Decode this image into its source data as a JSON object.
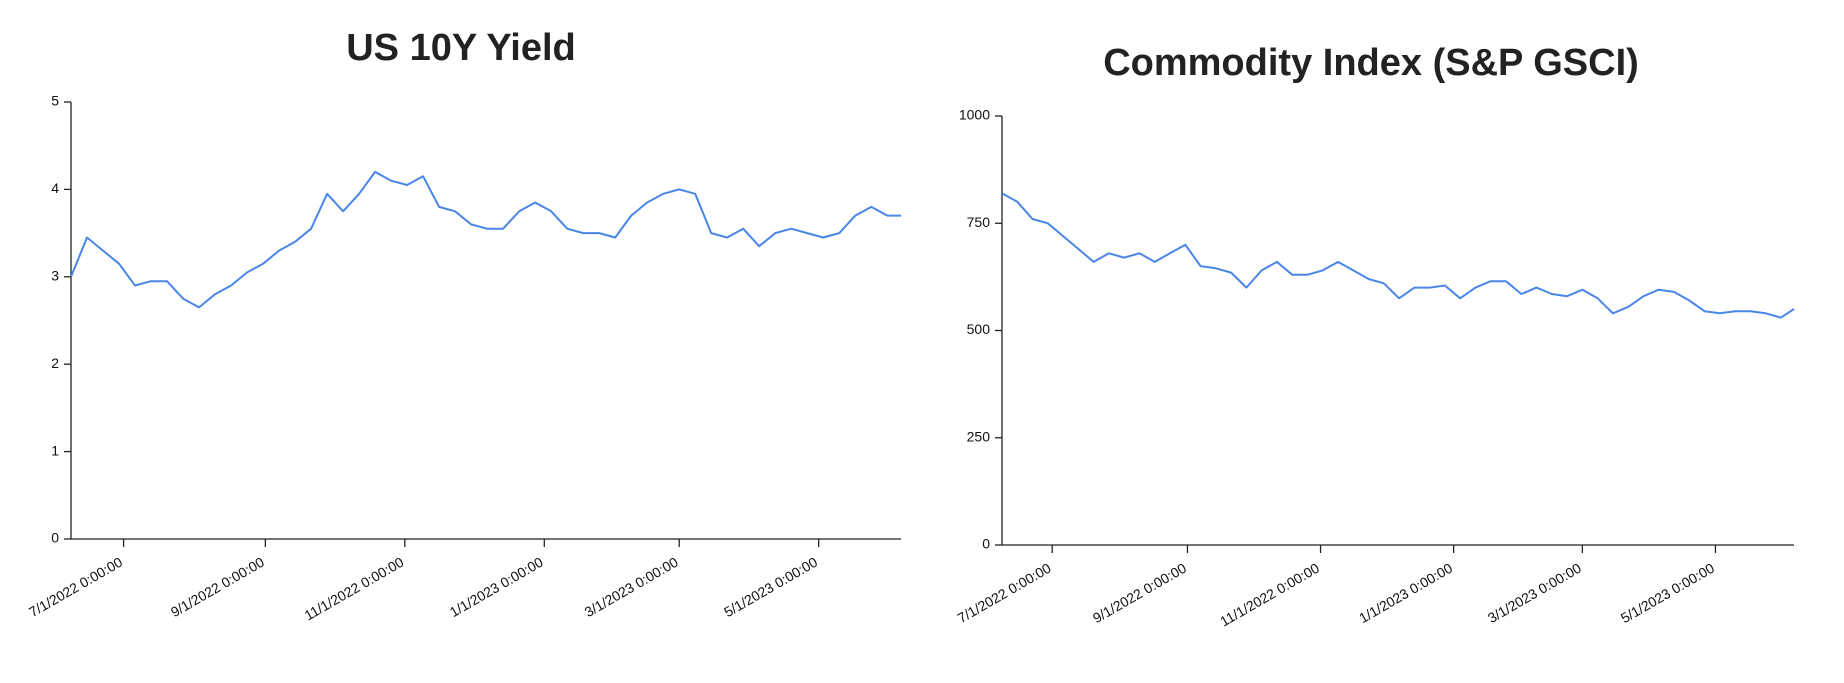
{
  "chart_data": [
    {
      "type": "line",
      "title": "US 10Y Yield",
      "x": [
        "2022-06-08",
        "2022-06-15",
        "2022-06-22",
        "2022-06-29",
        "2022-07-06",
        "2022-07-13",
        "2022-07-20",
        "2022-07-27",
        "2022-08-03",
        "2022-08-10",
        "2022-08-17",
        "2022-08-24",
        "2022-08-31",
        "2022-09-07",
        "2022-09-14",
        "2022-09-21",
        "2022-09-28",
        "2022-10-05",
        "2022-10-12",
        "2022-10-19",
        "2022-10-26",
        "2022-11-02",
        "2022-11-09",
        "2022-11-16",
        "2022-11-23",
        "2022-11-30",
        "2022-12-07",
        "2022-12-14",
        "2022-12-21",
        "2022-12-28",
        "2023-01-04",
        "2023-01-11",
        "2023-01-18",
        "2023-01-25",
        "2023-02-01",
        "2023-02-08",
        "2023-02-15",
        "2023-02-22",
        "2023-03-01",
        "2023-03-08",
        "2023-03-15",
        "2023-03-22",
        "2023-03-29",
        "2023-04-05",
        "2023-04-12",
        "2023-04-19",
        "2023-04-26",
        "2023-05-03",
        "2023-05-10",
        "2023-05-17",
        "2023-05-24",
        "2023-05-31",
        "2023-06-06"
      ],
      "values": [
        3.0,
        3.45,
        3.3,
        3.15,
        2.9,
        2.95,
        2.95,
        2.75,
        2.65,
        2.8,
        2.9,
        3.05,
        3.15,
        3.3,
        3.4,
        3.55,
        3.95,
        3.75,
        3.95,
        4.2,
        4.1,
        4.05,
        4.15,
        3.8,
        3.75,
        3.6,
        3.55,
        3.55,
        3.75,
        3.85,
        3.75,
        3.55,
        3.5,
        3.5,
        3.45,
        3.7,
        3.85,
        3.95,
        4.0,
        3.95,
        3.5,
        3.45,
        3.55,
        3.35,
        3.5,
        3.55,
        3.5,
        3.45,
        3.5,
        3.7,
        3.8,
        3.7,
        3.7
      ],
      "color": "#4a86e8",
      "xlim": [
        "2022-06-08",
        "2023-06-06"
      ],
      "xticks": [
        {
          "value": "2022-07-01",
          "label": "7/1/2022 0:00:00"
        },
        {
          "value": "2022-09-01",
          "label": "9/1/2022 0:00:00"
        },
        {
          "value": "2022-11-01",
          "label": "11/1/2022 0:00:00"
        },
        {
          "value": "2023-01-01",
          "label": "1/1/2023 0:00:00"
        },
        {
          "value": "2023-03-01",
          "label": "3/1/2023 0:00:00"
        },
        {
          "value": "2023-05-01",
          "label": "5/1/2023 0:00:00"
        }
      ],
      "ylim": [
        0,
        5
      ],
      "yticks": [
        0,
        1,
        2,
        3,
        4,
        5
      ]
    },
    {
      "type": "line",
      "title": "Commodity Index (S&P GSCI)",
      "x": [
        "2022-06-08",
        "2022-06-15",
        "2022-06-22",
        "2022-06-29",
        "2022-07-06",
        "2022-07-13",
        "2022-07-20",
        "2022-07-27",
        "2022-08-03",
        "2022-08-10",
        "2022-08-17",
        "2022-08-24",
        "2022-08-31",
        "2022-09-07",
        "2022-09-14",
        "2022-09-21",
        "2022-09-28",
        "2022-10-05",
        "2022-10-12",
        "2022-10-19",
        "2022-10-26",
        "2022-11-02",
        "2022-11-09",
        "2022-11-16",
        "2022-11-23",
        "2022-11-30",
        "2022-12-07",
        "2022-12-14",
        "2022-12-21",
        "2022-12-28",
        "2023-01-04",
        "2023-01-11",
        "2023-01-18",
        "2023-01-25",
        "2023-02-01",
        "2023-02-08",
        "2023-02-15",
        "2023-02-22",
        "2023-03-01",
        "2023-03-08",
        "2023-03-15",
        "2023-03-22",
        "2023-03-29",
        "2023-04-05",
        "2023-04-12",
        "2023-04-19",
        "2023-04-26",
        "2023-05-03",
        "2023-05-10",
        "2023-05-17",
        "2023-05-24",
        "2023-05-31",
        "2023-06-06"
      ],
      "values": [
        820,
        800,
        760,
        750,
        720,
        690,
        660,
        680,
        670,
        680,
        660,
        680,
        700,
        650,
        645,
        635,
        600,
        640,
        660,
        630,
        630,
        640,
        660,
        640,
        620,
        610,
        575,
        600,
        600,
        605,
        575,
        600,
        615,
        615,
        585,
        600,
        585,
        580,
        595,
        575,
        540,
        555,
        580,
        595,
        590,
        570,
        545,
        540,
        545,
        545,
        540,
        530,
        550
      ],
      "color": "#4a86e8",
      "xlim": [
        "2022-06-08",
        "2023-06-06"
      ],
      "xticks": [
        {
          "value": "2022-07-01",
          "label": "7/1/2022 0:00:00"
        },
        {
          "value": "2022-09-01",
          "label": "9/1/2022 0:00:00"
        },
        {
          "value": "2022-11-01",
          "label": "11/1/2022 0:00:00"
        },
        {
          "value": "2023-01-01",
          "label": "1/1/2023 0:00:00"
        },
        {
          "value": "2023-03-01",
          "label": "3/1/2023 0:00:00"
        },
        {
          "value": "2023-05-01",
          "label": "5/1/2023 0:00:00"
        }
      ],
      "ylim": [
        0,
        1000
      ],
      "yticks": [
        0,
        250,
        500,
        750,
        1000
      ]
    }
  ]
}
